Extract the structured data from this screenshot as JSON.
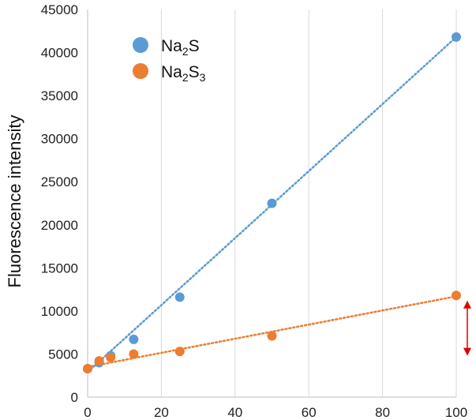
{
  "chart_data": {
    "type": "scatter",
    "title": "",
    "xlabel": "",
    "ylabel": "Fluorescence intensity",
    "xlim": [
      0,
      100
    ],
    "ylim": [
      0,
      45000
    ],
    "xticks": [
      "0",
      "20",
      "40",
      "60",
      "80",
      "100"
    ],
    "yticks": [
      "0",
      "5000",
      "10000",
      "15000",
      "20000",
      "25000",
      "30000",
      "35000",
      "40000",
      "45000"
    ],
    "grid": "vertical",
    "legend_position": "top-left",
    "series": [
      {
        "name": "Na2S",
        "name_base": "Na",
        "name_sub1": "2",
        "name_mid": "S",
        "name_sub2": "",
        "color": "#5b9bd5",
        "x": [
          0,
          3.125,
          6.25,
          12.5,
          25,
          50,
          100
        ],
        "y": [
          3300,
          4000,
          4800,
          6700,
          11600,
          22500,
          41800
        ],
        "trendline": {
          "style": "dotted",
          "x": [
            0,
            100
          ],
          "y": [
            2900,
            41800
          ]
        }
      },
      {
        "name": "Na2S3",
        "name_base": "Na",
        "name_sub1": "2",
        "name_mid": "S",
        "name_sub2": "3",
        "color": "#ed7d31",
        "x": [
          0,
          3.125,
          6.25,
          12.5,
          25,
          50,
          100
        ],
        "y": [
          3300,
          4200,
          4600,
          5000,
          5300,
          7100,
          11800
        ],
        "trendline": {
          "style": "dotted",
          "x": [
            0,
            100
          ],
          "y": [
            3500,
            11700
          ]
        }
      }
    ],
    "annotation": {
      "type": "double-arrow",
      "color": "#e00000",
      "x": 103,
      "y_from": 4800,
      "y_to": 11200
    }
  }
}
